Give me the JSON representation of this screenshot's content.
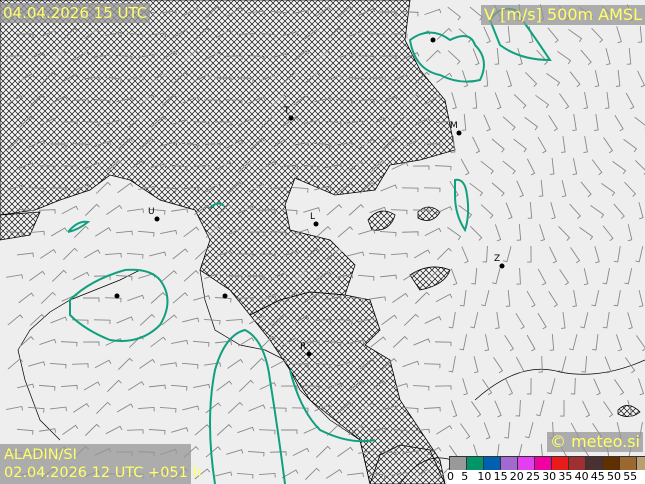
{
  "header": {
    "valid_time": "04.04.2026 15 UTC",
    "parameter": "V [m/s] 500m AMSL"
  },
  "footer": {
    "model": "ALADIN/SI",
    "run_info": "02.04.2026 12 UTC +051 h",
    "copyright": "© meteo.si"
  },
  "legend": {
    "unit": "m/s",
    "colors": [
      "#999999",
      "#00956a",
      "#0060b0",
      "#a06ad0",
      "#e040f0",
      "#f000a0",
      "#e81a1a",
      "#a03030",
      "#4a3030",
      "#603000",
      "#9a6830",
      "#b8a070"
    ],
    "ticks": [
      "0",
      "5",
      "10",
      "15",
      "20",
      "25",
      "30",
      "35",
      "40",
      "45",
      "50",
      "55"
    ]
  },
  "cities": [
    {
      "label": "T"
    },
    {
      "label": "M"
    },
    {
      "label": "U"
    },
    {
      "label": "L"
    },
    {
      "label": "Z"
    },
    {
      "label": "R"
    }
  ],
  "colors": {
    "contour": "#10a080",
    "terrain_hatch": "#000000",
    "background": "#eeeeee",
    "label_text": "#ffff66"
  }
}
